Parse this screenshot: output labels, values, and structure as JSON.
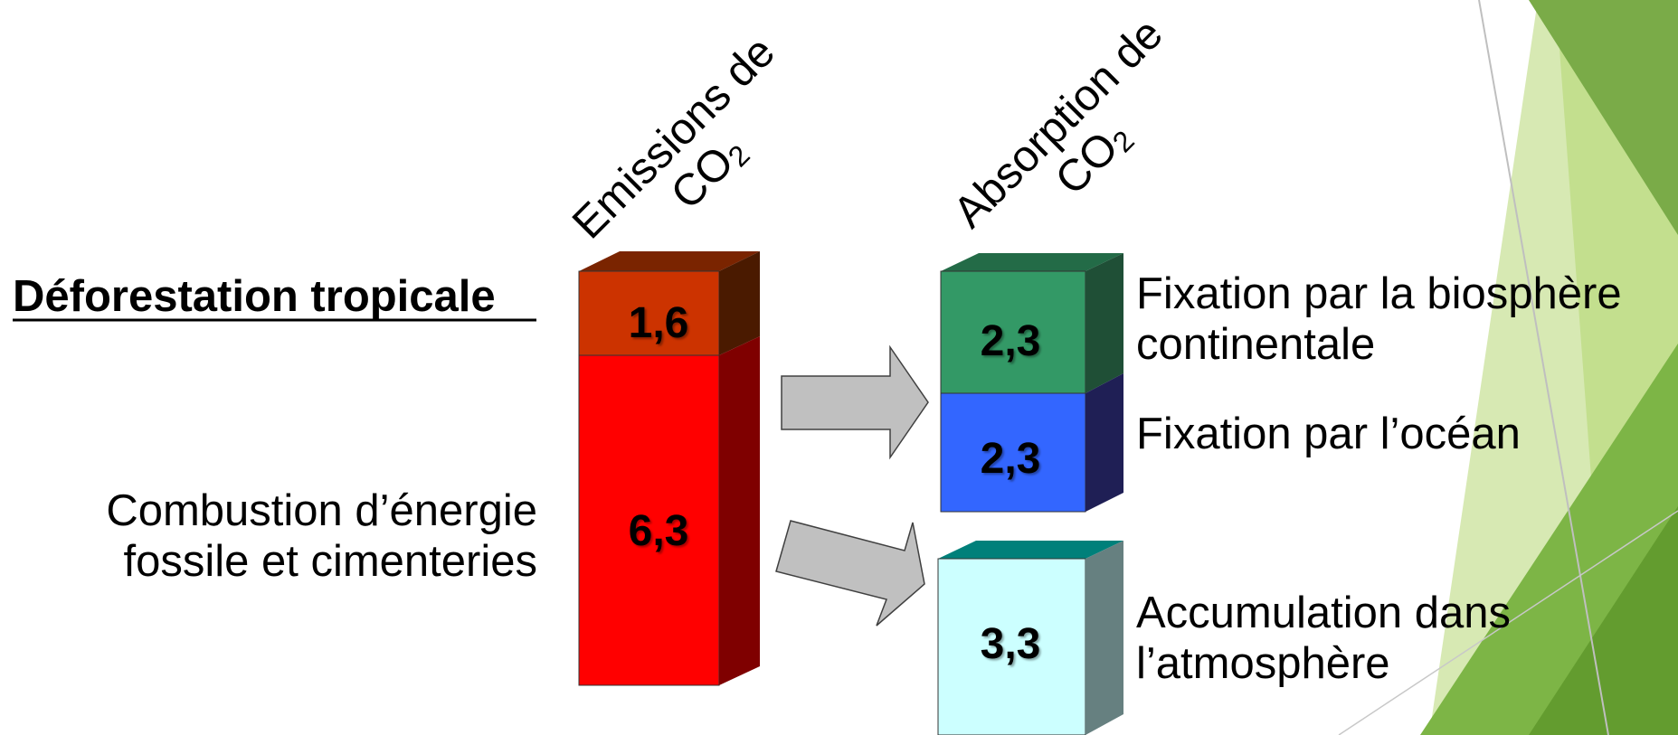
{
  "headers": {
    "emissions": {
      "line1": "Emissions de",
      "line2": "CO",
      "sub": "2"
    },
    "absorption": {
      "line1": "Absorption de",
      "line2": "CO",
      "sub": "2"
    }
  },
  "sources": [
    {
      "label": "Déforestation tropicale",
      "value": "1,6",
      "color": "#cc3300"
    },
    {
      "label_line1": "Combustion d’énergie",
      "label_line2": "fossile et cimenteries",
      "value": "6,3",
      "color": "#ff0000"
    }
  ],
  "sinks": [
    {
      "label_line1": "Fixation par la biosphère",
      "label_line2": "continentale",
      "value": "2,3",
      "color": "#339966"
    },
    {
      "label_line1": "Fixation par l’océan",
      "value": "2,3",
      "color": "#3366ff"
    },
    {
      "label_line1": "Accumulation dans",
      "label_line2": "l’atmosphère",
      "value": "3,3",
      "color": "#ccffff"
    }
  ]
}
